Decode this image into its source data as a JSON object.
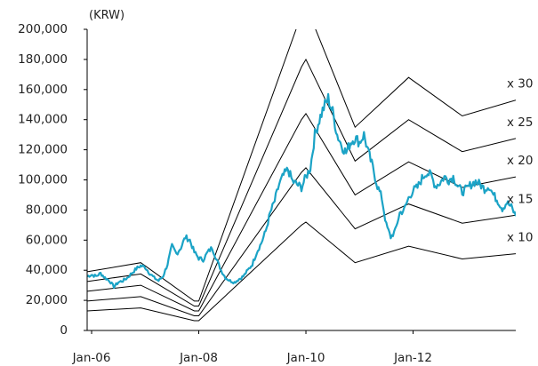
{
  "chart_data": {
    "type": "line",
    "title": "",
    "unit_label": "(KRW)",
    "xlabel": "",
    "ylabel": "",
    "ylim": [
      0,
      200000
    ],
    "xlim": [
      "2005-12",
      "2013-12"
    ],
    "y_ticks": [
      0,
      20000,
      40000,
      60000,
      80000,
      100000,
      120000,
      140000,
      160000,
      180000,
      200000
    ],
    "y_tick_labels": [
      "0",
      "20,000",
      "40,000",
      "60,000",
      "80,000",
      "100,000",
      "120,000",
      "140,000",
      "160,000",
      "180,000",
      "200,000"
    ],
    "x_ticks": [
      "2006-01",
      "2008-01",
      "2010-01",
      "2012-01"
    ],
    "x_tick_labels": [
      "Jan-06",
      "Jan-08",
      "Jan-10",
      "Jan-12"
    ],
    "grid": false,
    "legend": "none",
    "price_color": "#1ba3c6",
    "band_color": "#000000",
    "price_series": {
      "x": [
        "2005-12",
        "2006-01",
        "2006-02",
        "2006-03",
        "2006-04",
        "2006-05",
        "2006-06",
        "2006-07",
        "2006-08",
        "2006-09",
        "2006-10",
        "2006-11",
        "2006-12",
        "2007-01",
        "2007-02",
        "2007-03",
        "2007-04",
        "2007-05",
        "2007-06",
        "2007-07",
        "2007-08",
        "2007-09",
        "2007-10",
        "2007-11",
        "2007-12",
        "2008-01",
        "2008-02",
        "2008-03",
        "2008-04",
        "2008-05",
        "2008-06",
        "2008-07",
        "2008-08",
        "2008-09",
        "2008-10",
        "2008-11",
        "2008-12",
        "2009-01",
        "2009-02",
        "2009-03",
        "2009-04",
        "2009-05",
        "2009-06",
        "2009-07",
        "2009-08",
        "2009-09",
        "2009-10",
        "2009-11",
        "2009-12",
        "2010-01",
        "2010-02",
        "2010-03",
        "2010-04",
        "2010-05",
        "2010-06",
        "2010-07",
        "2010-08",
        "2010-09",
        "2010-10",
        "2010-11",
        "2010-12",
        "2011-01",
        "2011-02",
        "2011-03",
        "2011-04",
        "2011-05",
        "2011-06",
        "2011-07",
        "2011-08",
        "2011-09",
        "2011-10",
        "2011-11",
        "2011-12",
        "2012-01",
        "2012-02",
        "2012-03",
        "2012-04",
        "2012-05",
        "2012-06",
        "2012-07",
        "2012-08",
        "2012-09",
        "2012-10",
        "2012-11",
        "2012-12",
        "2013-01",
        "2013-02",
        "2013-03",
        "2013-04",
        "2013-05",
        "2013-06",
        "2013-07",
        "2013-08",
        "2013-09",
        "2013-10",
        "2013-11",
        "2013-12"
      ],
      "values": [
        36000,
        37000,
        36000,
        38000,
        35000,
        33000,
        29000,
        32000,
        33000,
        35000,
        38000,
        41000,
        43000,
        42000,
        38000,
        35000,
        33000,
        36000,
        44000,
        56000,
        51000,
        55000,
        62000,
        60000,
        52000,
        48000,
        47000,
        52000,
        55000,
        47000,
        40000,
        35000,
        33000,
        32000,
        34000,
        36000,
        40000,
        44000,
        52000,
        58000,
        66000,
        78000,
        86000,
        97000,
        103000,
        107000,
        99000,
        97000,
        95000,
        102000,
        108000,
        130000,
        140000,
        148000,
        154000,
        145000,
        130000,
        123000,
        118000,
        125000,
        128000,
        125000,
        130000,
        118000,
        108000,
        96000,
        88000,
        70000,
        62000,
        66000,
        78000,
        80000,
        88000,
        93000,
        95000,
        101000,
        105000,
        103000,
        96000,
        98000,
        102000,
        100000,
        102000,
        96000,
        92000,
        94000,
        97000,
        99000,
        97000,
        94000,
        96000,
        90000,
        86000,
        81000,
        85000,
        82000,
        76000
      ]
    },
    "band_series": {
      "x": [
        "2005-12",
        "2006-12",
        "2007-12",
        "2008-01",
        "2009-12",
        "2010-01",
        "2010-12",
        "2011-12",
        "2012-12",
        "2013-12"
      ],
      "bands": [
        {
          "label": "x 10",
          "values": [
            13000,
            15000,
            6500,
            6500,
            70000,
            72000,
            45000,
            56000,
            47500,
            51000
          ]
        },
        {
          "label": "x 15",
          "values": [
            19500,
            22500,
            9750,
            9750,
            105000,
            108000,
            67500,
            84000,
            71250,
            76500
          ]
        },
        {
          "label": "x 20",
          "values": [
            26000,
            30000,
            13000,
            13000,
            140000,
            144000,
            90000,
            112000,
            95000,
            102000
          ]
        },
        {
          "label": "x 25",
          "values": [
            32500,
            37500,
            16250,
            16250,
            175000,
            180000,
            112500,
            140000,
            118750,
            127500
          ]
        },
        {
          "label": "x 30",
          "values": [
            39000,
            45000,
            19500,
            19500,
            210000,
            216000,
            135000,
            168000,
            142500,
            153000
          ]
        }
      ]
    }
  }
}
